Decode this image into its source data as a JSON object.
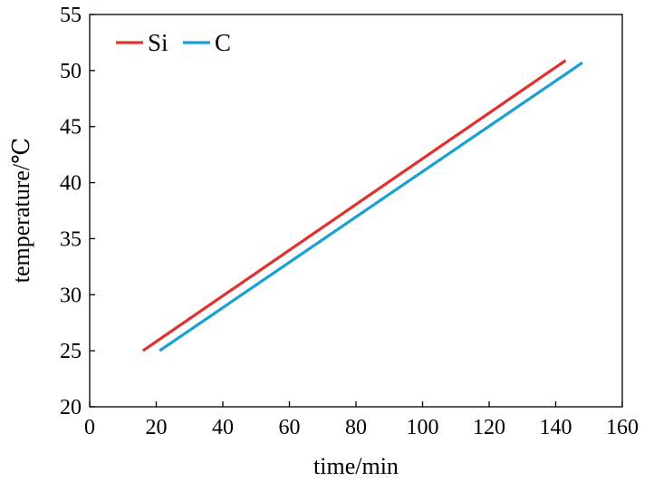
{
  "chart_data": {
    "type": "line",
    "title": "",
    "xlabel": "time/min",
    "ylabel": "temperature/℃",
    "xlim": [
      0,
      160
    ],
    "ylim": [
      20,
      55
    ],
    "xticks": [
      0,
      20,
      40,
      60,
      80,
      100,
      120,
      140,
      160
    ],
    "yticks": [
      20,
      25,
      30,
      35,
      40,
      45,
      50,
      55
    ],
    "grid": false,
    "legend": "top-left",
    "series": [
      {
        "name": "Si",
        "color": "#e0312f",
        "x": [
          16,
          143
        ],
        "y": [
          25,
          50.9
        ]
      },
      {
        "name": "C",
        "color": "#1aa0d2",
        "x": [
          21,
          148
        ],
        "y": [
          25,
          50.7
        ]
      }
    ]
  }
}
